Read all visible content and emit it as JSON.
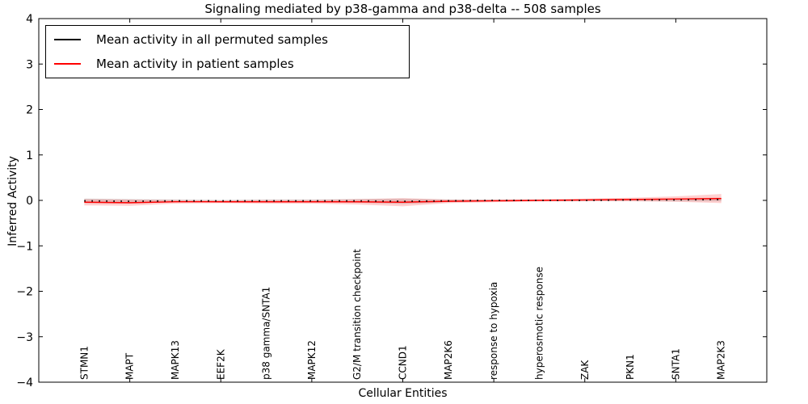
{
  "title": "Signaling mediated by p38-gamma and p38-delta -- 508 samples",
  "axes": {
    "xlabel": "Cellular Entities",
    "ylabel": "Inferred Activity"
  },
  "legend": {
    "items": [
      {
        "label": "Mean activity in all permuted samples",
        "color": "#000000"
      },
      {
        "label": "Mean activity in patient samples",
        "color": "#ff0000"
      }
    ]
  },
  "chart_data": {
    "type": "line",
    "title": "Signaling mediated by p38-gamma and p38-delta -- 508 samples",
    "xlabel": "Cellular Entities",
    "ylabel": "Inferred Activity",
    "xlim": [
      -1,
      15
    ],
    "ylim": [
      -4,
      4
    ],
    "yticks": [
      4,
      3,
      2,
      1,
      0,
      -1,
      -2,
      -3,
      -4
    ],
    "xtick_mark_indices": [
      1,
      3,
      5,
      7,
      9,
      11,
      13
    ],
    "grid": false,
    "legend_position": "upper left",
    "categories": [
      "STMN1",
      "MAPT",
      "MAPK13",
      "EEF2K",
      "p38 gamma/SNTA1",
      "MAPK12",
      "G2/M transition checkpoint",
      "CCND1",
      "MAP2K6",
      "response to hypoxia",
      "hyperosmotic response",
      "ZAK",
      "PKN1",
      "SNTA1",
      "MAP2K3"
    ],
    "series": [
      {
        "name": "Mean activity in all permuted samples",
        "color": "#000000",
        "linestyle": "dotted",
        "values": [
          -0.01,
          -0.02,
          -0.01,
          -0.01,
          -0.01,
          -0.01,
          -0.01,
          -0.02,
          -0.01,
          0.0,
          0.0,
          0.0,
          0.01,
          0.01,
          0.02
        ],
        "band_halfwidth": [
          0.05,
          0.05,
          0.03,
          0.02,
          0.03,
          0.03,
          0.04,
          0.06,
          0.03,
          0.02,
          0.02,
          0.02,
          0.02,
          0.03,
          0.04
        ],
        "band_color": "rgba(100,100,100,0.22)"
      },
      {
        "name": "Mean activity in patient samples",
        "color": "#ff0000",
        "linestyle": "solid",
        "values": [
          -0.04,
          -0.05,
          -0.03,
          -0.03,
          -0.03,
          -0.03,
          -0.03,
          -0.04,
          -0.02,
          -0.01,
          0.0,
          0.01,
          0.02,
          0.03,
          0.04
        ],
        "band_halfwidth": [
          0.07,
          0.07,
          0.04,
          0.03,
          0.04,
          0.04,
          0.06,
          0.09,
          0.04,
          0.03,
          0.02,
          0.03,
          0.04,
          0.06,
          0.1
        ],
        "band_color": "rgba(255,0,0,0.18)"
      }
    ]
  }
}
